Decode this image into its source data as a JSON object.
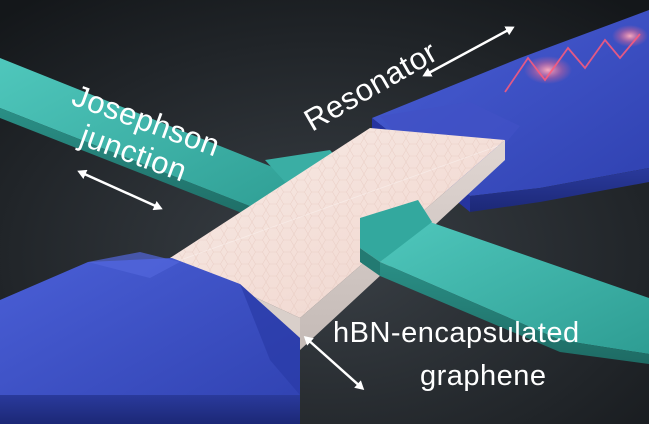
{
  "labels": {
    "resonator": "Resonator",
    "josephson_line1": "Josephson",
    "josephson_line2": "junction",
    "hbn_line1": "hBN-encapsulated",
    "hbn_line2": "graphene"
  },
  "colors": {
    "background": "#1e2226",
    "teal_lead": "#3fb8ad",
    "blue_electrode": "#3447b8",
    "hbn_stack": "#f2e4de",
    "glow": "#ff6a8a",
    "text": "#ffffff"
  }
}
